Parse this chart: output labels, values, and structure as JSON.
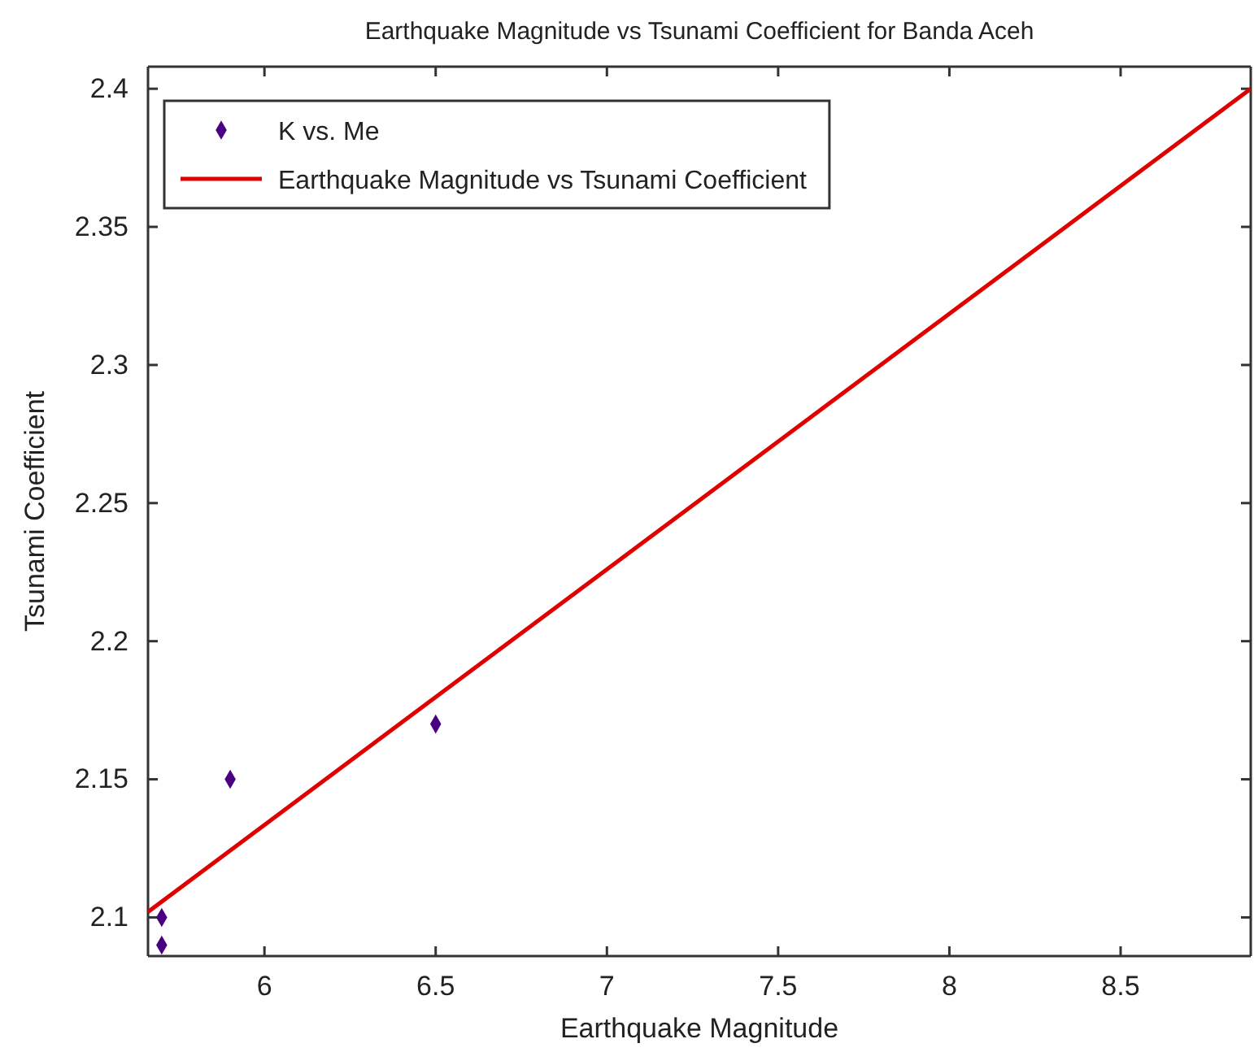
{
  "chart_data": {
    "type": "scatter",
    "title": "Earthquake Magnitude vs Tsunami Coefficient for Banda Aceh",
    "xlabel": "Earthquake Magnitude",
    "ylabel": "Tsunami Coefficient",
    "series": [
      {
        "name": "K vs. Me",
        "color": "#4b0082",
        "x": [
          5.7,
          5.7,
          5.9,
          6.5
        ],
        "values": [
          2.1,
          2.09,
          2.15,
          2.17
        ],
        "marker": "diamond"
      },
      {
        "name": "Earthquake Magnitude vs Tsunami Coefficient",
        "type": "line",
        "color": "#e00000",
        "x": [
          5.66,
          8.88
        ],
        "values": [
          2.102,
          2.4
        ],
        "marker": "none",
        "line_style": "solid"
      }
    ],
    "xlim": [
      5.66,
      8.88
    ],
    "ylim": [
      2.086,
      2.408
    ],
    "xticks": [
      6,
      6.5,
      7,
      7.5,
      8,
      8.5
    ],
    "yticks": [
      2.1,
      2.15,
      2.2,
      2.25,
      2.3,
      2.35,
      2.4
    ],
    "grid": false,
    "legend": "top left"
  }
}
